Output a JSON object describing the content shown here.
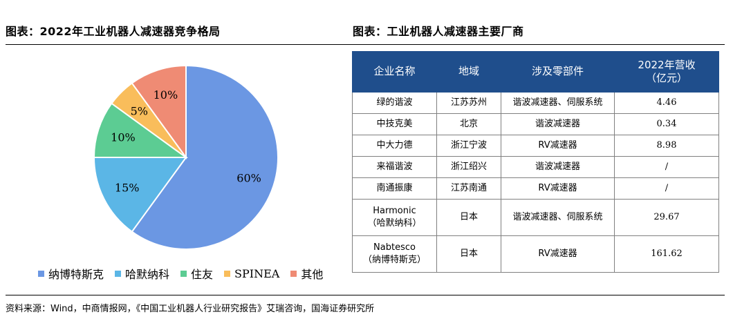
{
  "left_title": "图表：2022年工业机器人减速器竞争格局",
  "right_title": "图表：工业机器人减速器主要厂商",
  "chart_data": {
    "type": "pie",
    "title": "图表：2022年工业机器人减速器竞争格局",
    "slices": [
      {
        "name": "纳博特斯克",
        "value": 60,
        "label": "60%",
        "color": "#6b97e3"
      },
      {
        "name": "哈默纳科",
        "value": 15,
        "label": "15%",
        "color": "#5bb6e6"
      },
      {
        "name": "住友",
        "value": 10,
        "label": "10%",
        "color": "#5ccc93"
      },
      {
        "name": "SPINEA",
        "value": 5,
        "label": "5%",
        "color": "#f9bd5b"
      },
      {
        "name": "其他",
        "value": 10,
        "label": "10%",
        "color": "#ef8b74"
      }
    ],
    "legend_position": "bottom"
  },
  "table": {
    "headers": [
      "企业名称",
      "地域",
      "涉及零部件",
      "2022年营收\n（亿元）"
    ],
    "rows": [
      {
        "name": "绿的谐波",
        "region": "江苏苏州",
        "parts": "谐波减速器、伺服系统",
        "revenue": "4.46",
        "tall": false
      },
      {
        "name": "中技克美",
        "region": "北京",
        "parts": "谐波减速器",
        "revenue": "0.34",
        "tall": false
      },
      {
        "name": "中大力德",
        "region": "浙江宁波",
        "parts": "RV减速器",
        "revenue": "8.98",
        "tall": false
      },
      {
        "name": "来福谐波",
        "region": "浙江绍兴",
        "parts": "谐波减速器",
        "revenue": "/",
        "tall": false
      },
      {
        "name": "南通振康",
        "region": "江苏南通",
        "parts": "RV减速器",
        "revenue": "/",
        "tall": false
      },
      {
        "name": "Harmonic\n（哈默纳科）",
        "region": "日本",
        "parts": "谐波减速器、伺服系统",
        "revenue": "29.67",
        "tall": true
      },
      {
        "name": "Nabtesco\n（纳博特斯克）",
        "region": "日本",
        "parts": "RV减速器",
        "revenue": "161.62",
        "tall": true
      }
    ]
  },
  "source": "资料来源：Wind，中商情报网，《中国工业机器人行业研究报告》艾瑞咨询，国海证券研究所"
}
